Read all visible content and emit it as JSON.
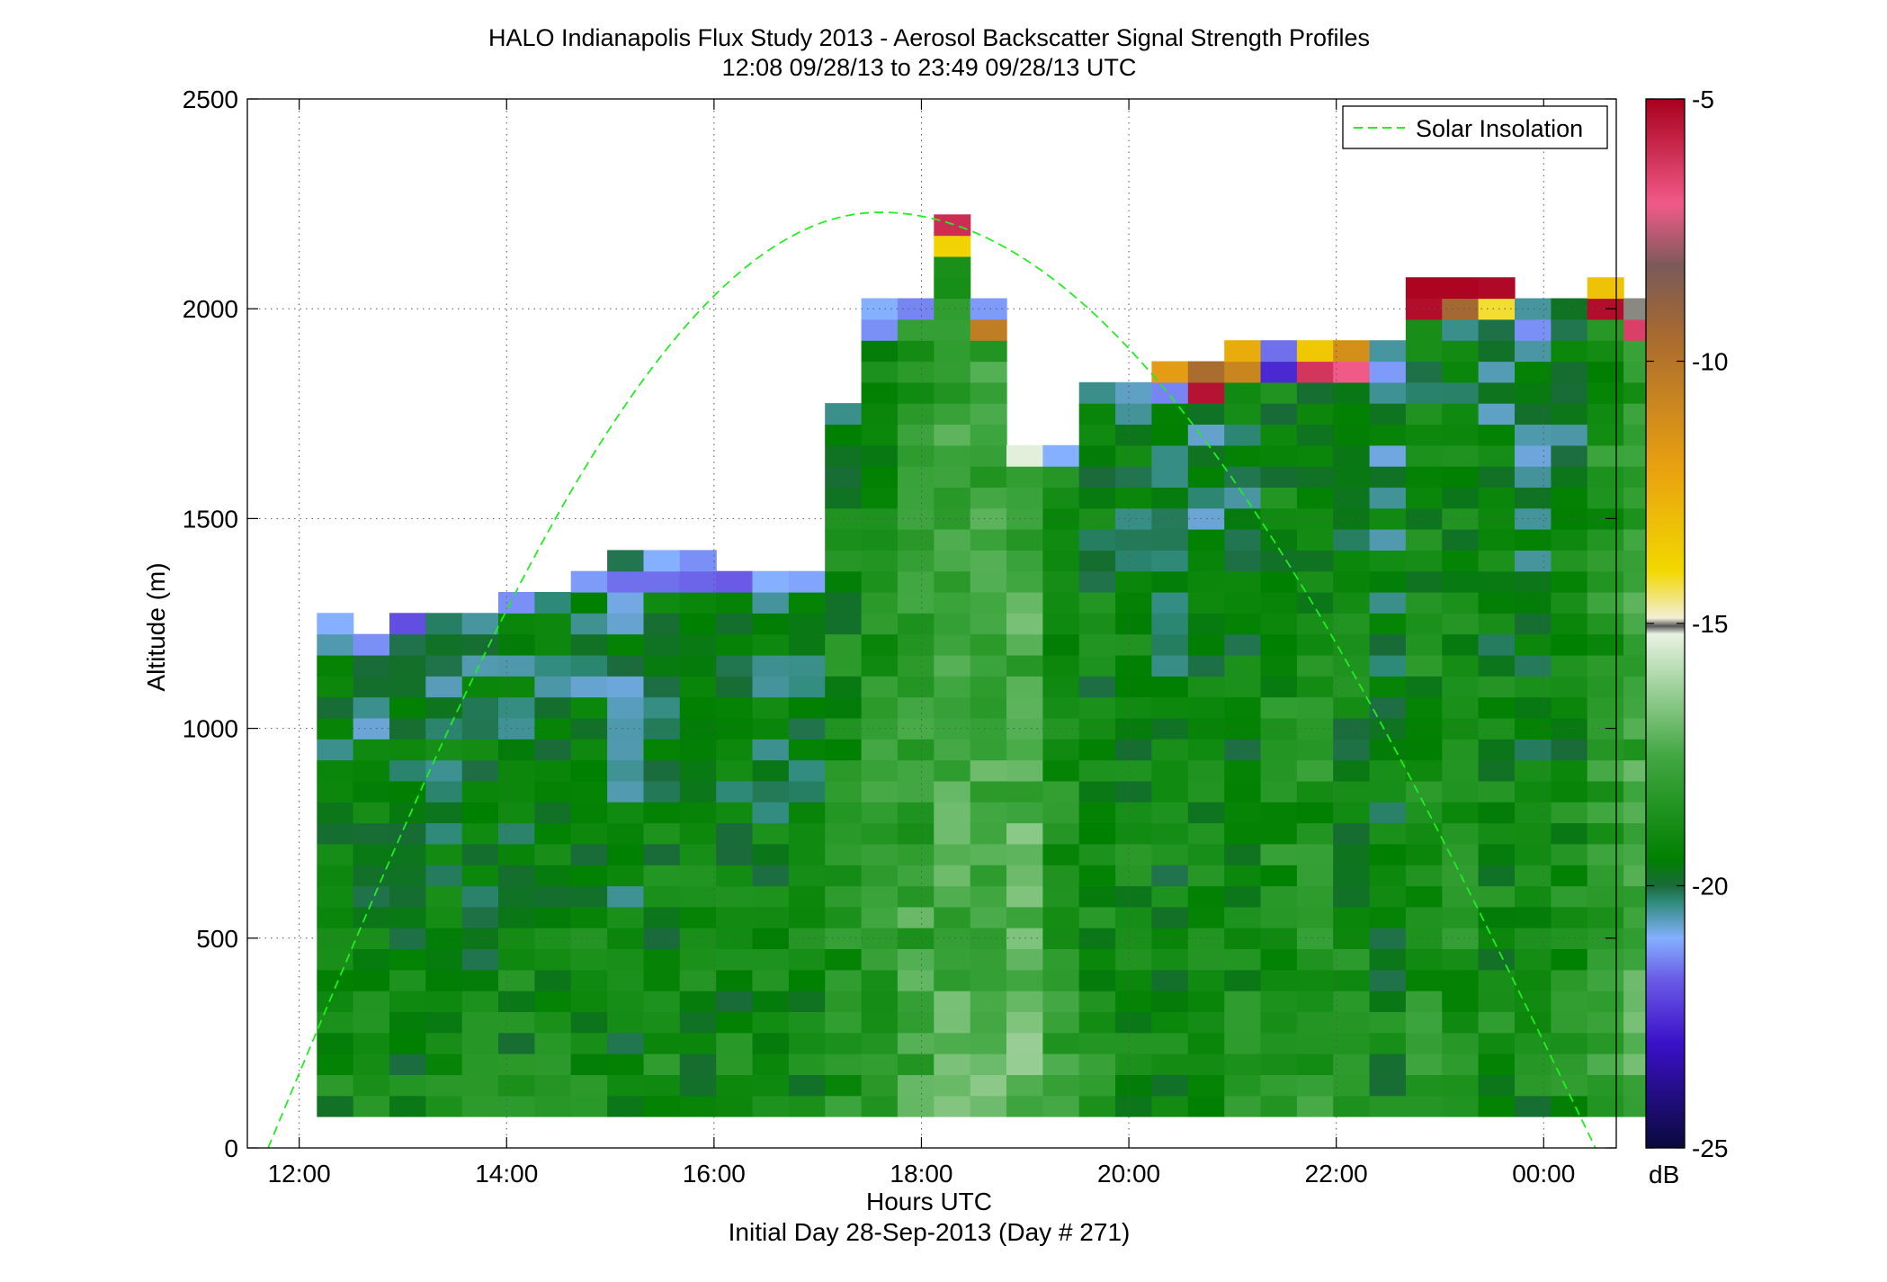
{
  "chart_data": {
    "type": "heatmap",
    "title": "HALO Indianapolis Flux Study 2013 - Aerosol Backscatter Signal Strength Profiles",
    "subtitle": "12:08 09/28/13 to 23:49 09/28/13  UTC",
    "xlabel": "Hours UTC",
    "xlabel2": "Initial Day 28-Sep-2013 (Day # 271)",
    "ylabel": "Altitude (m)",
    "xlim": [
      11.5,
      24.7
    ],
    "ylim": [
      0,
      2500
    ],
    "x_ticks": [
      {
        "value": 12,
        "label": "12:00"
      },
      {
        "value": 14,
        "label": "14:00"
      },
      {
        "value": 16,
        "label": "16:00"
      },
      {
        "value": 18,
        "label": "18:00"
      },
      {
        "value": 20,
        "label": "20:00"
      },
      {
        "value": 22,
        "label": "22:00"
      },
      {
        "value": 24,
        "label": "00:00"
      }
    ],
    "y_ticks": [
      {
        "value": 0,
        "label": "0"
      },
      {
        "value": 500,
        "label": "500"
      },
      {
        "value": 1000,
        "label": "1000"
      },
      {
        "value": 1500,
        "label": "1500"
      },
      {
        "value": 2000,
        "label": "2000"
      },
      {
        "value": 2500,
        "label": "2500"
      }
    ],
    "grid": true,
    "colorbar": {
      "label": "dB",
      "range": [
        -25,
        -5
      ],
      "ticks": [
        {
          "value": -5,
          "label": "-5"
        },
        {
          "value": -10,
          "label": "-10"
        },
        {
          "value": -15,
          "label": "-15"
        },
        {
          "value": -20,
          "label": "-20"
        },
        {
          "value": -25,
          "label": "-25"
        }
      ],
      "stops": [
        {
          "value": -25,
          "color": "#0a0a3c"
        },
        {
          "value": -23,
          "color": "#3a10c8"
        },
        {
          "value": -21.8,
          "color": "#6a5ae6"
        },
        {
          "value": -21,
          "color": "#84b0ff"
        },
        {
          "value": -20.3,
          "color": "#2e8a78"
        },
        {
          "value": -20,
          "color": "#1a6a3a"
        },
        {
          "value": -19.5,
          "color": "#008000"
        },
        {
          "value": -17.5,
          "color": "#43a843"
        },
        {
          "value": -15.2,
          "color": "#e8f2e2"
        },
        {
          "value": -15.05,
          "color": "#555555"
        },
        {
          "value": -14.9,
          "color": "#f2efd8"
        },
        {
          "value": -14,
          "color": "#f2d800"
        },
        {
          "value": -12,
          "color": "#e8a010"
        },
        {
          "value": -9.5,
          "color": "#a86a30"
        },
        {
          "value": -8.2,
          "color": "#7a5a58"
        },
        {
          "value": -7,
          "color": "#f05a88"
        },
        {
          "value": -5,
          "color": "#a8001c"
        }
      ]
    },
    "legend": {
      "position": "top-right",
      "entries": [
        {
          "name": "Solar Insolation",
          "color": "#22ee22",
          "style": "dashed"
        }
      ]
    },
    "solar_insolation": {
      "start_hour": 11.7,
      "end_hour": 24.5,
      "peak_hour": 17.6,
      "peak_altitude": 2230
    },
    "grid_cells": {
      "time_start": 12.17,
      "time_step": 0.35,
      "alt_start": 75,
      "alt_step": 50,
      "columns": [
        {
          "top": 1250,
          "dB": -19.3,
          "noise": [
            -21.0
          ]
        },
        {
          "top": 1200,
          "dB": -19.4,
          "noise": [
            -21.3
          ]
        },
        {
          "top": 1250,
          "dB": -19.5,
          "noise": [
            -22.0
          ]
        },
        {
          "top": 1250,
          "dB": -19.4,
          "noise": [
            -20.2
          ]
        },
        {
          "top": 1250,
          "dB": -19.3,
          "noise": [
            -20.5
          ]
        },
        {
          "top": 1300,
          "dB": -19.3,
          "noise": [
            -21.3
          ]
        },
        {
          "top": 1300,
          "dB": -19.4,
          "noise": [
            -20.3
          ]
        },
        {
          "top": 1350,
          "dB": -19.3,
          "noise": [
            -21.2
          ]
        },
        {
          "top": 1400,
          "dB": -19.6,
          "noise": [
            -20.1,
            -21.6
          ]
        },
        {
          "top": 1400,
          "dB": -19.3,
          "noise": [
            -21.0,
            -21.6
          ]
        },
        {
          "top": 1400,
          "dB": -19.3,
          "noise": [
            -21.3,
            -21.7
          ]
        },
        {
          "top": 1350,
          "dB": -19.4,
          "noise": [
            -21.8
          ]
        },
        {
          "top": 1350,
          "dB": -19.3,
          "noise": [
            -21.0
          ]
        },
        {
          "top": 1350,
          "dB": -19.3,
          "noise": [
            -21.1
          ]
        },
        {
          "top": 1750,
          "dB": -18.8,
          "noise": [
            -20.4,
            -19.5,
            -19.8
          ]
        },
        {
          "top": 2000,
          "dB": -18.3,
          "noise": [
            -21.0,
            -21.3
          ]
        },
        {
          "top": 2000,
          "dB": -18.0,
          "noise": [
            -21.4
          ]
        },
        {
          "top": 2200,
          "dB": -17.6,
          "noise": [
            -6.0,
            -13.8
          ]
        },
        {
          "top": 2000,
          "dB": -17.5,
          "noise": [
            -21.2,
            -10.4
          ]
        },
        {
          "top": 1650,
          "dB": -17.3,
          "noise": [
            -15.3
          ]
        },
        {
          "top": 1650,
          "dB": -18.5,
          "noise": [
            -21.0
          ]
        },
        {
          "top": 1800,
          "dB": -19.0,
          "noise": [
            -20.4
          ]
        },
        {
          "top": 1800,
          "dB": -19.2,
          "noise": [
            -20.7
          ]
        },
        {
          "top": 1850,
          "dB": -19.3,
          "noise": [
            -11.8,
            -21.4
          ]
        },
        {
          "top": 1850,
          "dB": -19.3,
          "noise": [
            -9.6,
            -5.4
          ]
        },
        {
          "top": 1900,
          "dB": -19.1,
          "noise": [
            -12.4,
            -10.8
          ]
        },
        {
          "top": 1900,
          "dB": -18.7,
          "noise": [
            -21.6,
            -22.6
          ]
        },
        {
          "top": 1900,
          "dB": -18.6,
          "noise": [
            -13.4,
            -6.2
          ]
        },
        {
          "top": 1900,
          "dB": -19.1,
          "noise": [
            -11.2,
            -7.0
          ]
        },
        {
          "top": 1900,
          "dB": -19.4,
          "noise": [
            -20.5,
            -21.2
          ]
        },
        {
          "top": 2050,
          "dB": -18.8,
          "noise": [
            -5.1,
            -5.3
          ]
        },
        {
          "top": 2050,
          "dB": -18.9,
          "noise": [
            -5.1,
            -9.4
          ]
        },
        {
          "top": 2050,
          "dB": -19.2,
          "noise": [
            -5.2,
            -14.2
          ]
        },
        {
          "top": 2000,
          "dB": -19.4,
          "noise": [
            -20.5,
            -21.3
          ]
        },
        {
          "top": 2000,
          "dB": -19.1,
          "noise": [
            -19.8,
            -20.1
          ]
        },
        {
          "top": 2050,
          "dB": -18.2,
          "noise": [
            -13.2,
            -5.3
          ]
        },
        {
          "top": 2000,
          "dB": -17.8,
          "noise": [
            -15.0,
            -6.4
          ]
        }
      ]
    }
  }
}
